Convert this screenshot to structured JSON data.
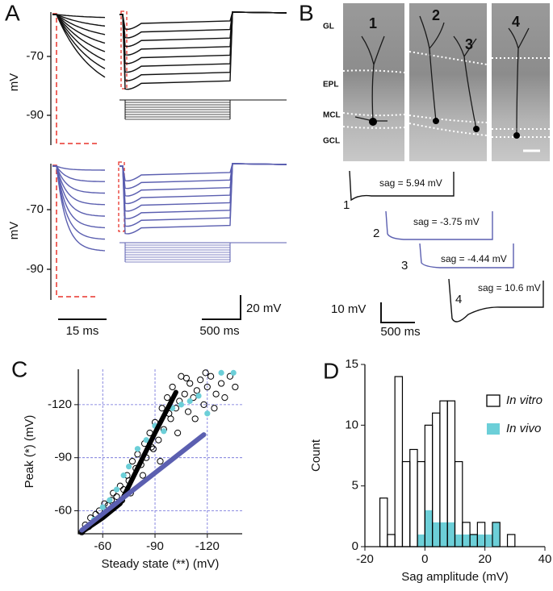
{
  "panel_a": {
    "label": "A",
    "y_label": "mV",
    "yticks": [
      -70,
      -90
    ],
    "scale_bars": {
      "time_fast": "15 ms",
      "time_slow": "500 ms",
      "voltage": "20 mV"
    }
  },
  "panel_b": {
    "label": "B",
    "layers": [
      "GL",
      "EPL",
      "MCL",
      "GCL"
    ],
    "cells": [
      "1",
      "2",
      "3",
      "4"
    ],
    "traces": [
      {
        "label": "1",
        "sag": "sag = 5.94 mV"
      },
      {
        "label": "2",
        "sag": "sag = -3.75 mV"
      },
      {
        "label": "3",
        "sag": "sag = -4.44 mV"
      },
      {
        "label": "4",
        "sag": "sag = 10.6 mV"
      }
    ],
    "scale_bars": {
      "voltage": "10 mV",
      "time": "500 ms"
    }
  },
  "chart_data": [
    {
      "type": "scatter",
      "label": "C",
      "x_label": "Steady state (**) (mV)",
      "y_label": "Peak (*) (mV)",
      "xlim": [
        -46,
        -140
      ],
      "ylim": [
        -47,
        -140
      ],
      "xticks": [
        -60,
        -90,
        -120
      ],
      "yticks": [
        -60,
        -90,
        -120
      ],
      "grid": true,
      "series": [
        {
          "color": "#000000",
          "marker": "open",
          "x": [
            -48,
            -50,
            -52,
            -53,
            -55,
            -56,
            -58,
            -60,
            -61,
            -63,
            -65,
            -66,
            -68,
            -70,
            -72,
            -74,
            -75,
            -77,
            -79,
            -80,
            -82,
            -84,
            -85,
            -87,
            -89,
            -90,
            -92,
            -94,
            -95,
            -97,
            -99,
            -100,
            -102,
            -104,
            -105,
            -107,
            -109,
            -110,
            -112,
            -114,
            -116,
            -118,
            -120,
            -122,
            -125,
            -128,
            -130,
            -133,
            -136,
            -71,
            -76,
            -83,
            -88,
            -93,
            -98,
            -103,
            -108,
            -113,
            -119,
            -124
          ],
          "y": [
            -48,
            -52,
            -51,
            -56,
            -54,
            -58,
            -60,
            -57,
            -64,
            -63,
            -66,
            -70,
            -68,
            -74,
            -72,
            -80,
            -77,
            -88,
            -84,
            -92,
            -86,
            -98,
            -90,
            -104,
            -95,
            -110,
            -100,
            -118,
            -106,
            -124,
            -112,
            -130,
            -118,
            -122,
            -136,
            -126,
            -116,
            -132,
            -124,
            -128,
            -134,
            -120,
            -130,
            -136,
            -126,
            -132,
            -124,
            -136,
            -130,
            -66,
            -70,
            -80,
            -96,
            -88,
            -115,
            -104,
            -135,
            -112,
            -138,
            -118
          ]
        },
        {
          "color": "#6ccfd8",
          "marker": "filled",
          "x": [
            -50,
            -55,
            -60,
            -64,
            -68,
            -72,
            -75,
            -80,
            -85,
            -90,
            -95,
            -100,
            -105,
            -110,
            -115,
            -120,
            -128,
            -135
          ],
          "y": [
            -50,
            -55,
            -62,
            -66,
            -72,
            -80,
            -85,
            -95,
            -100,
            -108,
            -105,
            -118,
            -120,
            -122,
            -125,
            -115,
            -138,
            -138
          ]
        }
      ],
      "fits": [
        {
          "color": "#000000",
          "x": [
            -48,
            -60,
            -70,
            -80,
            -90,
            -102
          ],
          "y": [
            -48,
            -56,
            -64,
            -84,
            -104,
            -127
          ]
        },
        {
          "color": "#5b5fb0",
          "x": [
            -48,
            -118
          ],
          "y": [
            -49,
            -103
          ]
        }
      ]
    },
    {
      "type": "histogram",
      "label": "D",
      "x_label": "Sag amplitude (mV)",
      "y_label": "Count",
      "xlim": [
        -20,
        40
      ],
      "ylim": [
        0,
        15
      ],
      "xticks": [
        -20,
        0,
        20,
        40
      ],
      "yticks": [
        0,
        5,
        10,
        15
      ],
      "legend": "upper right",
      "bins": [
        -15,
        -12.5,
        -10,
        -7.5,
        -5,
        -2.5,
        0,
        2.5,
        5,
        7.5,
        10,
        12.5,
        15,
        17.5,
        20,
        22.5,
        25,
        27.5,
        30
      ],
      "series": [
        {
          "name": "In vitro",
          "color": "#000000",
          "style": "outline",
          "values": [
            4,
            1,
            14,
            7,
            8,
            7,
            10,
            11,
            12,
            12,
            7,
            2,
            1,
            2,
            0,
            2,
            0,
            1
          ]
        },
        {
          "name": "In vivo",
          "color": "#6ccfd8",
          "style": "filled",
          "values": [
            0,
            0,
            0,
            0,
            0,
            1,
            3,
            2,
            2,
            2,
            1,
            1,
            1,
            1,
            1,
            2,
            0,
            0
          ]
        }
      ]
    }
  ]
}
